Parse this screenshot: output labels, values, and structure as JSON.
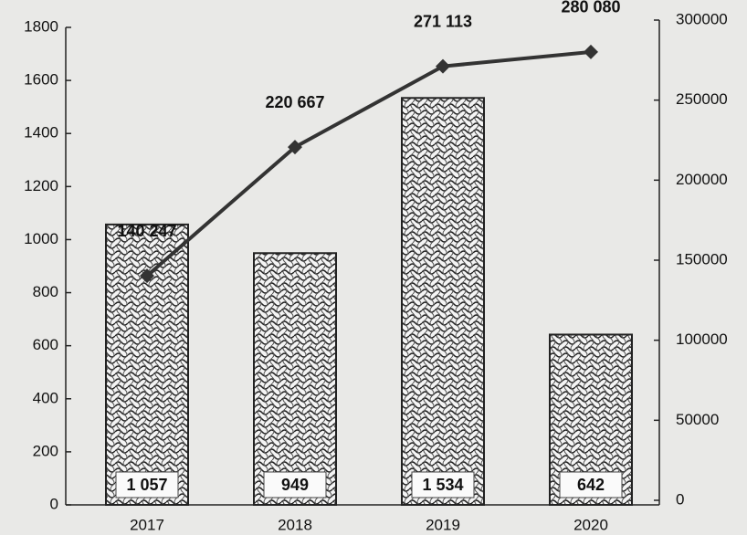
{
  "chart_data": {
    "type": "bar",
    "categories": [
      "2017",
      "2018",
      "2019",
      "2020"
    ],
    "series": [
      {
        "type": "bar",
        "color": "#9a9a9a",
        "values": [
          1057,
          949,
          1534,
          642
        ],
        "value_labels": [
          "1 057",
          "949",
          "1 534",
          "642"
        ]
      },
      {
        "type": "line",
        "axis": "y2",
        "color": "#333333",
        "values": [
          140247,
          220667,
          271113,
          280080
        ],
        "value_labels": [
          "140 247",
          "220 667",
          "271 113",
          "280 080"
        ]
      }
    ],
    "ylim": [
      0,
      1800
    ],
    "yticks": [
      0,
      200,
      400,
      600,
      800,
      1000,
      1200,
      1400,
      1600,
      1800
    ],
    "y2lim": [
      0,
      300000
    ],
    "y2ticks": [
      0,
      50000,
      100000,
      150000,
      200000,
      250000,
      300000
    ]
  }
}
